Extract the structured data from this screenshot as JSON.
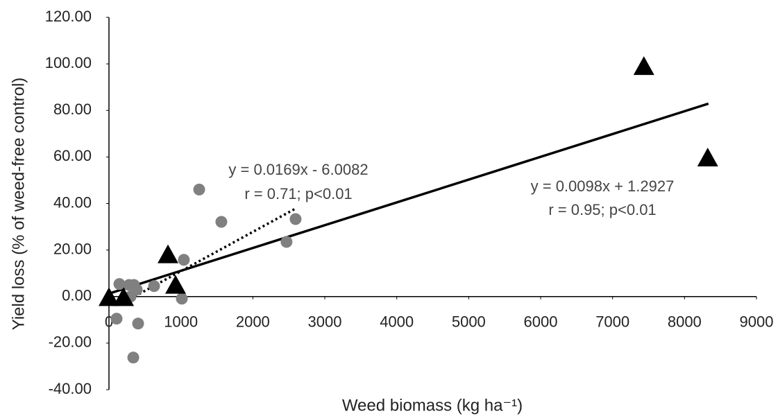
{
  "chart_data": {
    "type": "scatter",
    "xlabel": "Weed biomass (kg ha⁻¹)",
    "ylabel": "Yield loss (% of weed-free control)",
    "xlim": [
      0,
      9000
    ],
    "xticks": [
      0,
      1000,
      2000,
      3000,
      4000,
      5000,
      6000,
      7000,
      8000,
      9000
    ],
    "ylim": [
      -40,
      120
    ],
    "yticks": [
      {
        "value": -40,
        "label": "-40.00"
      },
      {
        "value": -20,
        "label": "-20.00"
      },
      {
        "value": 0,
        "label": "0.00"
      },
      {
        "value": 20,
        "label": "20.00"
      },
      {
        "value": 40,
        "label": "40.00"
      },
      {
        "value": 60,
        "label": "60.00"
      },
      {
        "value": 80,
        "label": "80.00"
      },
      {
        "value": 100,
        "label": "100.00"
      },
      {
        "value": 120,
        "label": "120.00"
      }
    ],
    "series": [
      {
        "marker": "circle",
        "color": "#808080",
        "x": [
          1254,
          1562,
          2594,
          2468,
          1041,
          145,
          280,
          347,
          386,
          627,
          1013,
          106,
          405,
          338,
          300
        ],
        "values": [
          46,
          32.1,
          33.3,
          23.5,
          15.8,
          5.4,
          5,
          5,
          3,
          4.5,
          -0.9,
          -9.5,
          -11.6,
          -26.2,
          0
        ]
      },
      {
        "marker": "triangle",
        "color": "#000000",
        "x": [
          7435,
          8322,
          820,
          926,
          0,
          203
        ],
        "values": [
          98.8,
          59.5,
          17.9,
          4.8,
          -0.5,
          -0.5
        ]
      }
    ],
    "trendlines": [
      {
        "style": "dotted",
        "color": "#000000",
        "x": [
          300,
          2604
        ],
        "values": [
          -0.9,
          38
        ]
      },
      {
        "style": "solid",
        "color": "#000000",
        "x": [
          0,
          8332
        ],
        "values": [
          1.29,
          82.9
        ]
      }
    ],
    "annotations": [
      "y = 0.0169x - 6.0082",
      "r = 0.71; p<0.01",
      "y = 0.0098x + 1.2927",
      "r = 0.95; p<0.01"
    ]
  }
}
